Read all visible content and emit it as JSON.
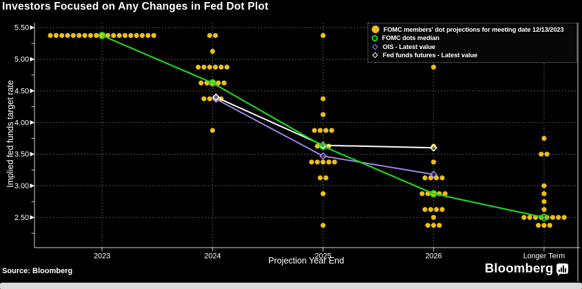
{
  "header": {
    "title": "Investors Focused on Any Changes in Fed Dot Plot"
  },
  "footer": {
    "source": "Source: Bloomberg",
    "brand": "Bloomberg"
  },
  "palette": {
    "yellow": "#ecbe1b",
    "green": "#21d321",
    "purple": "#9e86e6",
    "white": "#ffffff",
    "grid": "#6f6f6f",
    "text": "#ffffff",
    "background": "#000000"
  },
  "legend": {
    "position": "top-right",
    "items": [
      {
        "label": "FOMC members' dot projections for meeting date 12/13/2023",
        "marker": "filled-circle",
        "color": "#ecbe1b"
      },
      {
        "label": "FOMC dots median",
        "marker": "open-circle",
        "color": "#21d321"
      },
      {
        "label": "OIS - Latest value",
        "marker": "open-diamond",
        "color": "#9e86e6"
      },
      {
        "label": "Fed funds futures - Latest value",
        "marker": "open-diamond",
        "color": "#ffffff"
      }
    ]
  },
  "chart_data": {
    "type": "scatter",
    "title": "Investors Focused on Any Changes in Fed Dot Plot",
    "xlabel": "Projection Year End",
    "ylabel": "Implied fed funds target rate",
    "ylim": [
      2.1,
      5.6
    ],
    "yticks": [
      5.5,
      5.0,
      4.5,
      4.0,
      3.5,
      3.0,
      2.5
    ],
    "grid": true,
    "categories": [
      "2023",
      "2024",
      "2025",
      "2026",
      "Longer Term"
    ],
    "dot_projections": [
      {
        "category": "2023",
        "median": 5.375,
        "rows": [
          {
            "rate": 5.375,
            "count": 19
          }
        ]
      },
      {
        "category": "2024",
        "median": 4.625,
        "rows": [
          {
            "rate": 5.375,
            "count": 2
          },
          {
            "rate": 5.125,
            "count": 1
          },
          {
            "rate": 4.875,
            "count": 6
          },
          {
            "rate": 4.625,
            "count": 5
          },
          {
            "rate": 4.375,
            "count": 4
          },
          {
            "rate": 3.875,
            "count": 1
          }
        ]
      },
      {
        "category": "2025",
        "median": 3.625,
        "rows": [
          {
            "rate": 5.375,
            "count": 1
          },
          {
            "rate": 4.375,
            "count": 1
          },
          {
            "rate": 4.125,
            "count": 1
          },
          {
            "rate": 3.875,
            "count": 4
          },
          {
            "rate": 3.625,
            "count": 3
          },
          {
            "rate": 3.375,
            "count": 5
          },
          {
            "rate": 3.125,
            "count": 2
          },
          {
            "rate": 2.875,
            "count": 1
          },
          {
            "rate": 2.375,
            "count": 1
          }
        ]
      },
      {
        "category": "2026",
        "median": 2.875,
        "rows": [
          {
            "rate": 4.875,
            "count": 1
          },
          {
            "rate": 3.625,
            "count": 1
          },
          {
            "rate": 3.375,
            "count": 1
          },
          {
            "rate": 3.125,
            "count": 4
          },
          {
            "rate": 2.875,
            "count": 5
          },
          {
            "rate": 2.625,
            "count": 4
          },
          {
            "rate": 2.5,
            "count": 1
          },
          {
            "rate": 2.375,
            "count": 3
          }
        ]
      },
      {
        "category": "Longer Term",
        "median": 2.5,
        "rows": [
          {
            "rate": 3.75,
            "count": 1
          },
          {
            "rate": 3.5,
            "count": 2
          },
          {
            "rate": 3.0,
            "count": 1
          },
          {
            "rate": 2.875,
            "count": 1
          },
          {
            "rate": 2.75,
            "count": 1
          },
          {
            "rate": 2.625,
            "count": 1
          },
          {
            "rate": 2.5,
            "count": 8
          },
          {
            "rate": 2.375,
            "count": 3
          }
        ]
      }
    ],
    "series": [
      {
        "name": "FOMC dots median",
        "color": "green",
        "marker": "open-circle",
        "categories": [
          "2023",
          "2024",
          "2025",
          "2026",
          "Longer Term"
        ],
        "values": [
          5.375,
          4.625,
          3.625,
          2.875,
          2.5
        ]
      },
      {
        "name": "OIS - Latest value",
        "color": "purple",
        "marker": "open-diamond",
        "categories": [
          "2024",
          "2025",
          "2026"
        ],
        "values": [
          4.37,
          3.47,
          3.18
        ]
      },
      {
        "name": "Fed funds futures - Latest value",
        "color": "white",
        "marker": "open-diamond",
        "categories": [
          "2024",
          "2025",
          "2026"
        ],
        "values": [
          4.4,
          3.64,
          3.6
        ]
      }
    ]
  }
}
